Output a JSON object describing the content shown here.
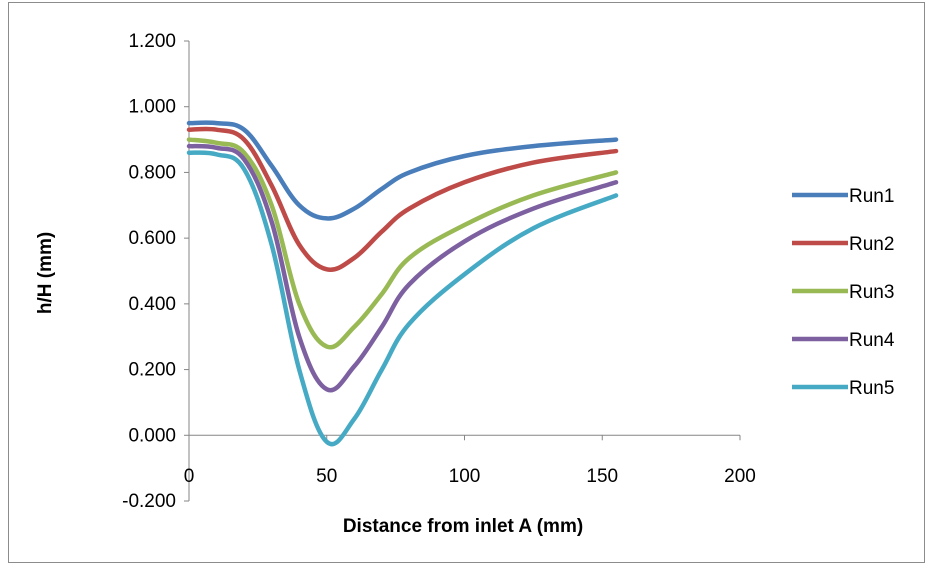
{
  "chart_data": {
    "type": "line",
    "title": "",
    "xlabel": "Distance from inlet A (mm)",
    "ylabel": "h/H (mm)",
    "xlim": [
      0,
      200
    ],
    "ylim": [
      -0.2,
      1.2
    ],
    "xticks": [
      0,
      50,
      100,
      150,
      200
    ],
    "xtick_labels": [
      "0",
      "50",
      "100",
      "150",
      "200"
    ],
    "yticks": [
      -0.2,
      0,
      0.2,
      0.4,
      0.6,
      0.8,
      1.0,
      1.2
    ],
    "ytick_labels": [
      "-0.200",
      "0.000",
      "0.200",
      "0.400",
      "0.600",
      "0.800",
      "1.000",
      "1.200"
    ],
    "grid": false,
    "legend_position": "right",
    "x": [
      0,
      10,
      20,
      30,
      40,
      50,
      60,
      70,
      80,
      100,
      125,
      155
    ],
    "series": [
      {
        "name": "Run1",
        "color": "#4a7ebb",
        "values": [
          0.95,
          0.95,
          0.93,
          0.82,
          0.7,
          0.66,
          0.69,
          0.75,
          0.8,
          0.85,
          0.88,
          0.9
        ]
      },
      {
        "name": "Run2",
        "color": "#be4b48",
        "values": [
          0.93,
          0.93,
          0.9,
          0.76,
          0.58,
          0.505,
          0.54,
          0.62,
          0.69,
          0.77,
          0.83,
          0.865
        ]
      },
      {
        "name": "Run3",
        "color": "#98b954",
        "values": [
          0.9,
          0.89,
          0.86,
          0.7,
          0.4,
          0.27,
          0.33,
          0.43,
          0.54,
          0.64,
          0.73,
          0.8
        ]
      },
      {
        "name": "Run4",
        "color": "#7d60a0",
        "values": [
          0.88,
          0.875,
          0.84,
          0.65,
          0.3,
          0.14,
          0.21,
          0.33,
          0.46,
          0.59,
          0.69,
          0.77
        ]
      },
      {
        "name": "Run5",
        "color": "#46aac5",
        "values": [
          0.86,
          0.855,
          0.81,
          0.58,
          0.2,
          -0.02,
          0.05,
          0.2,
          0.34,
          0.49,
          0.63,
          0.73
        ]
      }
    ]
  }
}
